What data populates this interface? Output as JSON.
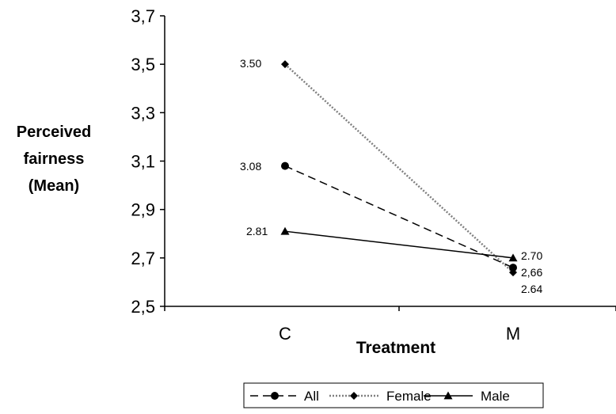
{
  "chart_data": {
    "type": "line",
    "categories": [
      "C",
      "M"
    ],
    "ylim": [
      2.5,
      3.7
    ],
    "yticks": [
      "2,5",
      "2,7",
      "2,9",
      "3,1",
      "3,3",
      "3,5",
      "3,7"
    ],
    "ylabel": [
      "Perceived",
      "fairness",
      "(Mean)"
    ],
    "xlabel": "Treatment",
    "grid": false,
    "legend": "bottom",
    "series": [
      {
        "name": "All",
        "values": [
          3.08,
          2.66
        ],
        "labels": [
          "3.08",
          "2,66"
        ],
        "marker": "circle",
        "style": "dashed",
        "color": "#000000"
      },
      {
        "name": "Female",
        "values": [
          3.5,
          2.64
        ],
        "labels": [
          "3.50",
          "2.64"
        ],
        "marker": "diamond",
        "style": "dotted",
        "color": "#808080"
      },
      {
        "name": "Male",
        "values": [
          2.81,
          2.7
        ],
        "labels": [
          "2.81",
          "2.70"
        ],
        "marker": "triangle",
        "style": "solid",
        "color": "#000000"
      }
    ]
  }
}
